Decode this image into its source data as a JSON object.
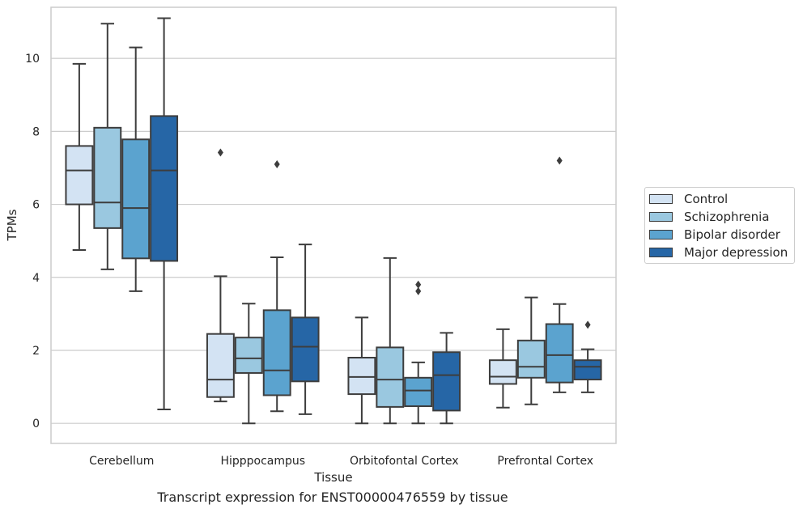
{
  "chart_data": {
    "type": "box",
    "title": "Transcript expression for ENST00000476559 by tissue",
    "xlabel": "Tissue",
    "ylabel": "TPMs",
    "ylim": [
      -0.55,
      11.4
    ],
    "yticks": [
      0,
      2,
      4,
      6,
      8,
      10
    ],
    "categories": [
      "Cerebellum",
      "Hipppocampus",
      "Orbitofontal Cortex",
      "Prefrontal Cortex"
    ],
    "grid": "horizontal",
    "legend_position": "right",
    "series": [
      {
        "name": "Control",
        "color": "#d3e3f3",
        "boxes": [
          {
            "whislo": 4.75,
            "q1": 6.0,
            "med": 6.93,
            "q3": 7.6,
            "whishi": 9.85,
            "fliers": []
          },
          {
            "whislo": 0.6,
            "q1": 0.72,
            "med": 1.2,
            "q3": 2.45,
            "whishi": 4.03,
            "fliers": [
              7.42
            ]
          },
          {
            "whislo": 0.0,
            "q1": 0.8,
            "med": 1.27,
            "q3": 1.8,
            "whishi": 2.9,
            "fliers": []
          },
          {
            "whislo": 0.43,
            "q1": 1.08,
            "med": 1.28,
            "q3": 1.73,
            "whishi": 2.58,
            "fliers": []
          }
        ]
      },
      {
        "name": "Schizophrenia",
        "color": "#9ac8e0",
        "boxes": [
          {
            "whislo": 4.22,
            "q1": 5.35,
            "med": 6.05,
            "q3": 8.1,
            "whishi": 10.95,
            "fliers": []
          },
          {
            "whislo": 0.0,
            "q1": 1.38,
            "med": 1.78,
            "q3": 2.35,
            "whishi": 3.28,
            "fliers": []
          },
          {
            "whislo": 0.0,
            "q1": 0.45,
            "med": 1.2,
            "q3": 2.08,
            "whishi": 4.53,
            "fliers": []
          },
          {
            "whislo": 0.52,
            "q1": 1.25,
            "med": 1.55,
            "q3": 2.27,
            "whishi": 3.45,
            "fliers": []
          }
        ]
      },
      {
        "name": "Bipolar disorder",
        "color": "#5ba3cf",
        "boxes": [
          {
            "whislo": 3.62,
            "q1": 4.52,
            "med": 5.9,
            "q3": 7.78,
            "whishi": 10.3,
            "fliers": []
          },
          {
            "whislo": 0.33,
            "q1": 0.77,
            "med": 1.45,
            "q3": 3.1,
            "whishi": 4.55,
            "fliers": [
              7.1
            ]
          },
          {
            "whislo": 0.0,
            "q1": 0.47,
            "med": 0.9,
            "q3": 1.25,
            "whishi": 1.67,
            "fliers": [
              3.62,
              3.8
            ]
          },
          {
            "whislo": 0.85,
            "q1": 1.12,
            "med": 1.87,
            "q3": 2.72,
            "whishi": 3.27,
            "fliers": [
              7.2
            ]
          }
        ]
      },
      {
        "name": "Major depression",
        "color": "#2666a6",
        "boxes": [
          {
            "whislo": 0.38,
            "q1": 4.45,
            "med": 6.93,
            "q3": 8.42,
            "whishi": 11.1,
            "fliers": []
          },
          {
            "whislo": 0.25,
            "q1": 1.15,
            "med": 2.1,
            "q3": 2.9,
            "whishi": 4.9,
            "fliers": []
          },
          {
            "whislo": 0.0,
            "q1": 0.35,
            "med": 1.32,
            "q3": 1.95,
            "whishi": 2.48,
            "fliers": []
          },
          {
            "whislo": 0.85,
            "q1": 1.2,
            "med": 1.55,
            "q3": 1.73,
            "whishi": 2.03,
            "fliers": [
              2.7
            ]
          }
        ]
      }
    ]
  }
}
